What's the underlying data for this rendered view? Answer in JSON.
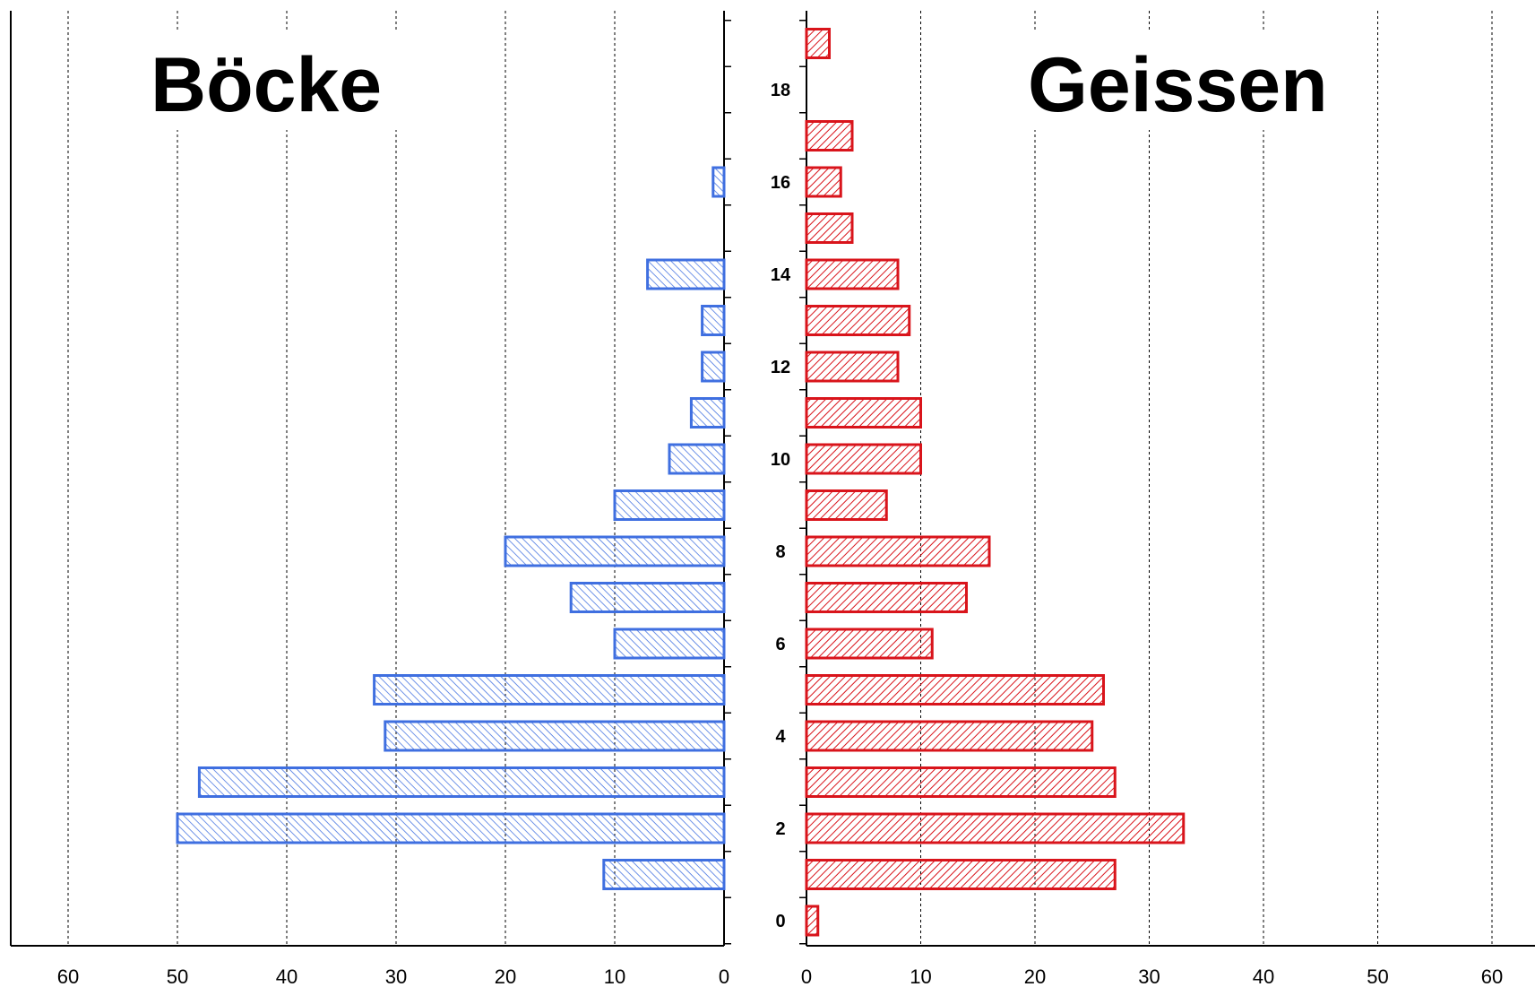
{
  "chart_data": {
    "type": "bar",
    "orientation": "horizontal-population-pyramid",
    "titles": {
      "left": "Böcke",
      "right": "Geissen"
    },
    "categories": [
      0,
      1,
      2,
      3,
      4,
      5,
      6,
      7,
      8,
      9,
      10,
      11,
      12,
      13,
      14,
      15,
      16,
      17,
      18,
      19
    ],
    "age_labels_shown": [
      "0",
      "2",
      "4",
      "6",
      "8",
      "10",
      "12",
      "14",
      "16",
      "18"
    ],
    "series": [
      {
        "name": "Böcke",
        "side": "left",
        "color": "#3f6fe0",
        "values": [
          0,
          11,
          50,
          48,
          31,
          32,
          10,
          14,
          20,
          10,
          5,
          3,
          2,
          2,
          7,
          0,
          1,
          0,
          0,
          0
        ]
      },
      {
        "name": "Geissen",
        "side": "right",
        "color": "#d9141b",
        "values": [
          1,
          27,
          33,
          27,
          25,
          26,
          11,
          14,
          16,
          7,
          10,
          10,
          8,
          9,
          8,
          4,
          3,
          4,
          0,
          2
        ]
      }
    ],
    "left_axis_ticks": [
      "60",
      "50",
      "40",
      "30",
      "20",
      "10",
      "0"
    ],
    "right_axis_ticks": [
      "0",
      "10",
      "20",
      "30",
      "40",
      "50",
      "60"
    ],
    "xlim": [
      0,
      60
    ],
    "grid": true
  }
}
